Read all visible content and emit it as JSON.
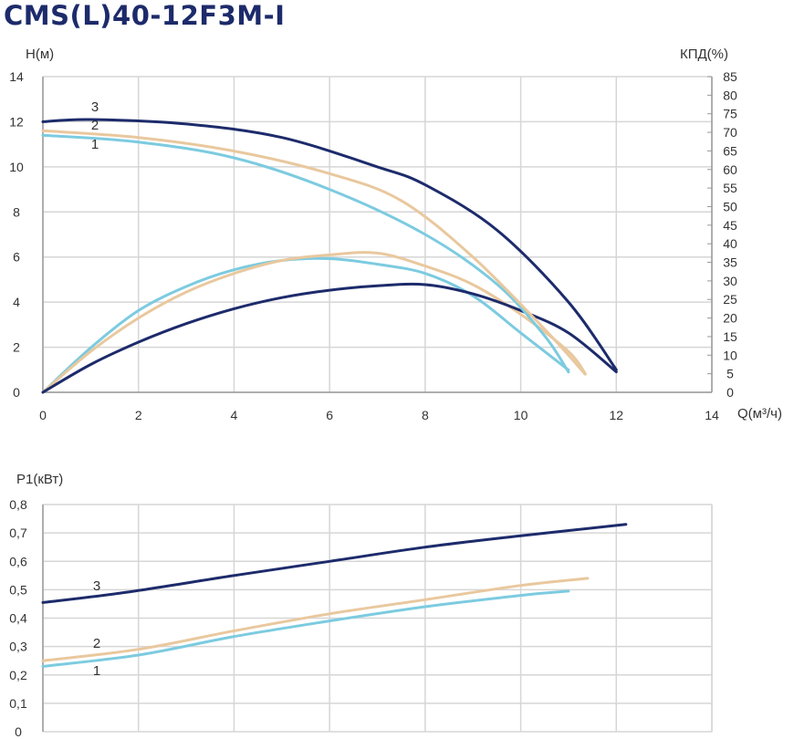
{
  "title": "CMS(L)40-12F3M-I",
  "colors": {
    "curve1": "#7ccbe0",
    "curve2": "#e9c89e",
    "curve3": "#1d2b6b",
    "grid": "#d6d6d6",
    "axis": "#999999"
  },
  "chart_data": [
    {
      "type": "line",
      "ylabel": "H(м)",
      "y2label": "КПД(%)",
      "xlabel": "Q(м³/ч)",
      "xlim": [
        0,
        14
      ],
      "ylim": [
        0,
        14
      ],
      "y2lim": [
        0,
        85
      ],
      "xticks": [
        "0",
        "2",
        "4",
        "6",
        "8",
        "10",
        "12",
        "14"
      ],
      "yticks": [
        "0",
        "2",
        "4",
        "6",
        "8",
        "10",
        "12",
        "14"
      ],
      "y2ticks": [
        "0",
        "5",
        "10",
        "15",
        "20",
        "25",
        "30",
        "35",
        "40",
        "45",
        "50",
        "55",
        "60",
        "65",
        "70",
        "75",
        "80",
        "85"
      ],
      "grid": true,
      "curve_labels": [
        "3",
        "2",
        "1"
      ],
      "head_series": [
        {
          "name": "1",
          "points": [
            [
              0,
              11.4
            ],
            [
              2,
              11.1
            ],
            [
              4,
              10.4
            ],
            [
              6,
              9.0
            ],
            [
              8,
              7.0
            ],
            [
              9.5,
              4.8
            ],
            [
              10.5,
              2.5
            ],
            [
              11,
              0.9
            ]
          ]
        },
        {
          "name": "2",
          "points": [
            [
              0,
              11.6
            ],
            [
              2,
              11.3
            ],
            [
              4,
              10.7
            ],
            [
              6,
              9.7
            ],
            [
              7.5,
              8.5
            ],
            [
              9,
              6.0
            ],
            [
              10.5,
              2.8
            ],
            [
              11.35,
              0.8
            ]
          ]
        },
        {
          "name": "3",
          "points": [
            [
              0,
              12.0
            ],
            [
              1,
              12.1
            ],
            [
              3,
              11.9
            ],
            [
              5,
              11.3
            ],
            [
              7,
              10.0
            ],
            [
              8,
              9.2
            ],
            [
              9.5,
              7.2
            ],
            [
              11,
              4.0
            ],
            [
              12,
              1.0
            ]
          ]
        }
      ],
      "efficiency_series": [
        {
          "name": "1",
          "points": [
            [
              0,
              0
            ],
            [
              1,
              12
            ],
            [
              2,
              22
            ],
            [
              3,
              28.5
            ],
            [
              4,
              33
            ],
            [
              5,
              35.5
            ],
            [
              6,
              36
            ],
            [
              7,
              34.5
            ],
            [
              8,
              32
            ],
            [
              9,
              26
            ],
            [
              10,
              16
            ],
            [
              11,
              6
            ]
          ]
        },
        {
          "name": "2",
          "points": [
            [
              0,
              0
            ],
            [
              1,
              11
            ],
            [
              2,
              20
            ],
            [
              3,
              27
            ],
            [
              4,
              32
            ],
            [
              5,
              35.5
            ],
            [
              6,
              37
            ],
            [
              7,
              37.5
            ],
            [
              8,
              34
            ],
            [
              9,
              29
            ],
            [
              10,
              21
            ],
            [
              11,
              11
            ],
            [
              11.35,
              5
            ]
          ]
        },
        {
          "name": "3",
          "points": [
            [
              0,
              0
            ],
            [
              1,
              7.5
            ],
            [
              2,
              13.5
            ],
            [
              3,
              18.5
            ],
            [
              4,
              22.5
            ],
            [
              5,
              25.5
            ],
            [
              6,
              27.5
            ],
            [
              7,
              28.7
            ],
            [
              8,
              29
            ],
            [
              9,
              26.5
            ],
            [
              10,
              22
            ],
            [
              11,
              16
            ],
            [
              12,
              5.5
            ]
          ]
        }
      ]
    },
    {
      "type": "line",
      "ylabel": "P1(кВт)",
      "xlim": [
        0,
        14
      ],
      "ylim": [
        0,
        0.8
      ],
      "yticks": [
        "0",
        "0,1",
        "0,2",
        "0,3",
        "0,4",
        "0,5",
        "0,6",
        "0,7",
        "0,8"
      ],
      "grid": true,
      "curve_labels": [
        "3",
        "2",
        "1"
      ],
      "series": [
        {
          "name": "1",
          "points": [
            [
              0,
              0.23
            ],
            [
              2,
              0.27
            ],
            [
              4,
              0.335
            ],
            [
              6,
              0.39
            ],
            [
              8,
              0.44
            ],
            [
              10,
              0.48
            ],
            [
              11,
              0.495
            ]
          ]
        },
        {
          "name": "2",
          "points": [
            [
              0,
              0.25
            ],
            [
              2,
              0.29
            ],
            [
              4,
              0.355
            ],
            [
              6,
              0.415
            ],
            [
              8,
              0.465
            ],
            [
              10,
              0.515
            ],
            [
              11.4,
              0.54
            ]
          ]
        },
        {
          "name": "3",
          "points": [
            [
              0,
              0.455
            ],
            [
              1.7,
              0.49
            ],
            [
              4,
              0.55
            ],
            [
              6,
              0.6
            ],
            [
              8,
              0.65
            ],
            [
              10,
              0.69
            ],
            [
              12.2,
              0.73
            ]
          ]
        }
      ]
    }
  ]
}
